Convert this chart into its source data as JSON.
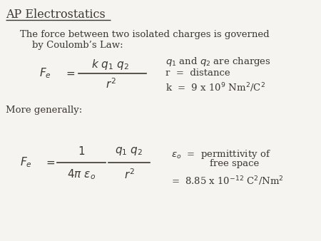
{
  "title": "AP Electrostatics",
  "bg_color": "#f5f4f0",
  "text_color": "#3a3830",
  "title_fontsize": 11.5,
  "body_fontsize": 9.5,
  "math_fontsize": 11,
  "small_fontsize": 9,
  "line1": "The force between two isolated charges is governed",
  "line2": "by Coulomb’s Law:",
  "more_generally": "More generally:",
  "q_charges": "$q_1$ and $q_2$ are charges",
  "r_dist": "r  =  distance",
  "k_val": "k  =  9 x 10$^9$ Nm$^2$/C$^2$",
  "eps_line1": "$\\varepsilon_o$  =  permittivity of",
  "eps_line2": "free space",
  "eps_val": "=  8.85 x 10$^{-12}$ C$^2$/Nm$^2$"
}
